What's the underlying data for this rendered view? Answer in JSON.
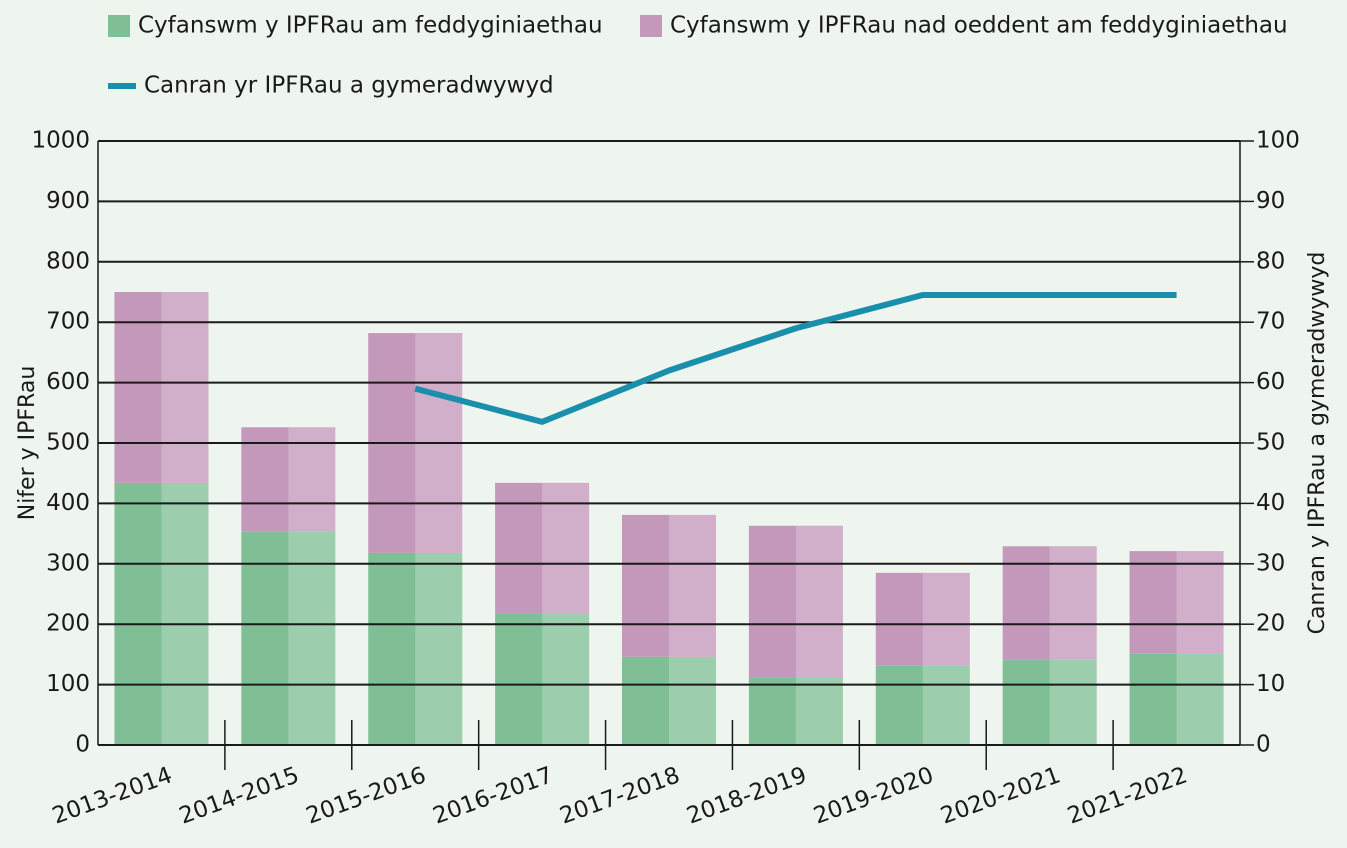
{
  "chart_data": {
    "type": "bar",
    "y_label": "Nifer y IPFRau",
    "y2_label": "Canran y IPFRau a gymeradwywyd",
    "categories": [
      "2013-2014",
      "2014-2015",
      "2015-2016",
      "2016-2017",
      "2017-2018",
      "2018-2019",
      "2019-2020",
      "2020-2021",
      "2021-2022"
    ],
    "series": [
      {
        "name": "Cyfanswm y IPFRau am feddyginiaethau",
        "type": "bar",
        "color": "#80bf95",
        "values": [
          434,
          353,
          318,
          217,
          146,
          111,
          131,
          141,
          151
        ]
      },
      {
        "name": "Cyfanswm y IPFRau nad oeddent am feddyginiaethau",
        "type": "bar",
        "color": "#c498ba",
        "values": [
          316,
          173,
          364,
          217,
          235,
          252,
          154,
          188,
          170
        ]
      },
      {
        "name": "Canran yr IPFRau a gymeradwywyd",
        "type": "line",
        "axis": "y2",
        "color": "#1a8fab",
        "values": [
          null,
          null,
          59,
          53.5,
          62,
          69,
          74.5,
          74.5,
          74.5
        ]
      }
    ],
    "stacked": true,
    "ylim": [
      0,
      1000
    ],
    "yticks": [
      0,
      100,
      200,
      300,
      400,
      500,
      600,
      700,
      800,
      900,
      1000
    ],
    "y2lim": [
      0,
      100
    ],
    "y2ticks": [
      0,
      10,
      20,
      30,
      40,
      50,
      60,
      70,
      80,
      90,
      100
    ],
    "grid": true
  }
}
